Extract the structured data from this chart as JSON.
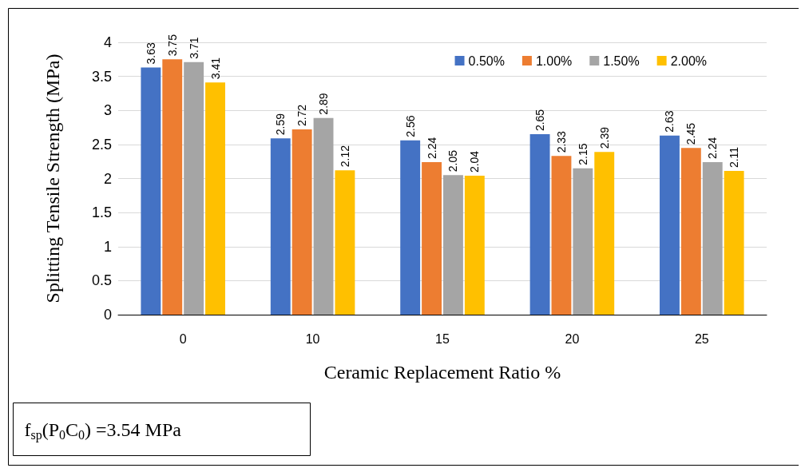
{
  "chart_data": {
    "type": "bar",
    "xlabel": "Ceramic Replacement Ratio %",
    "ylabel": "Splitting Tensile Strength (MPa)",
    "categories": [
      "0",
      "10",
      "15",
      "20",
      "25"
    ],
    "series": [
      {
        "name": "0.50%",
        "color": "#4472c4",
        "values": [
          3.63,
          2.59,
          2.56,
          2.65,
          2.63
        ]
      },
      {
        "name": "1.00%",
        "color": "#ed7d31",
        "values": [
          3.75,
          2.72,
          2.24,
          2.33,
          2.45
        ]
      },
      {
        "name": "1.50%",
        "color": "#a5a5a5",
        "values": [
          3.71,
          2.89,
          2.05,
          2.15,
          2.24
        ]
      },
      {
        "name": "2.00%",
        "color": "#ffc000",
        "values": [
          3.41,
          2.12,
          2.04,
          2.39,
          2.11
        ]
      }
    ],
    "ylim": [
      0,
      4
    ],
    "yticks": [
      0,
      0.5,
      1,
      1.5,
      2,
      2.5,
      3,
      3.5,
      4
    ],
    "grid": "y",
    "legend": "top right",
    "data_labels": true,
    "annotations": [
      "f$_{sp}$(P$_{0}$C$_{0}$) =3.54 MPa"
    ]
  }
}
